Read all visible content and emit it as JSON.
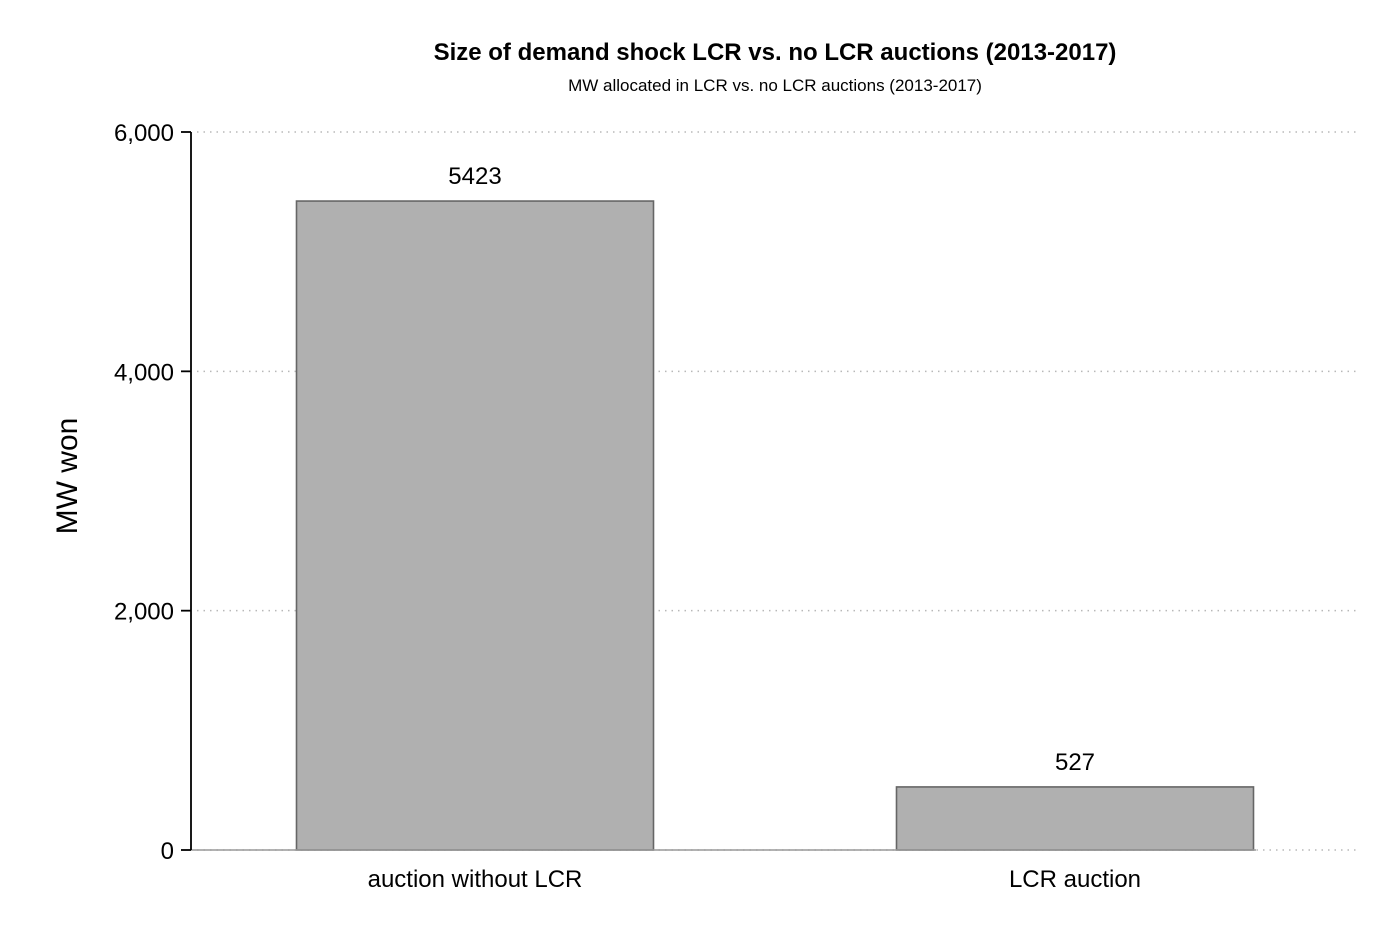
{
  "chart_data": {
    "type": "bar",
    "title": "Size of demand shock LCR vs. no LCR auctions (2013-2017)",
    "subtitle": "MW allocated in LCR vs. no LCR auctions (2013-2017)",
    "xlabel": "",
    "ylabel": "MW won",
    "categories": [
      "auction without LCR",
      "LCR auction"
    ],
    "values": [
      5423,
      527
    ],
    "data_labels": [
      "5423",
      "527"
    ],
    "ylim": [
      0,
      6000
    ],
    "yticks": [
      0,
      2000,
      4000,
      6000
    ],
    "ytick_labels": [
      "0",
      "2,000",
      "4,000",
      "6,000"
    ],
    "grid": "horizontal dotted",
    "legend": "none",
    "colors": {
      "bar_fill": "#b0b0b0",
      "bar_stroke": "#666666",
      "grid": "#b8b8b8",
      "axis": "#000000"
    }
  }
}
